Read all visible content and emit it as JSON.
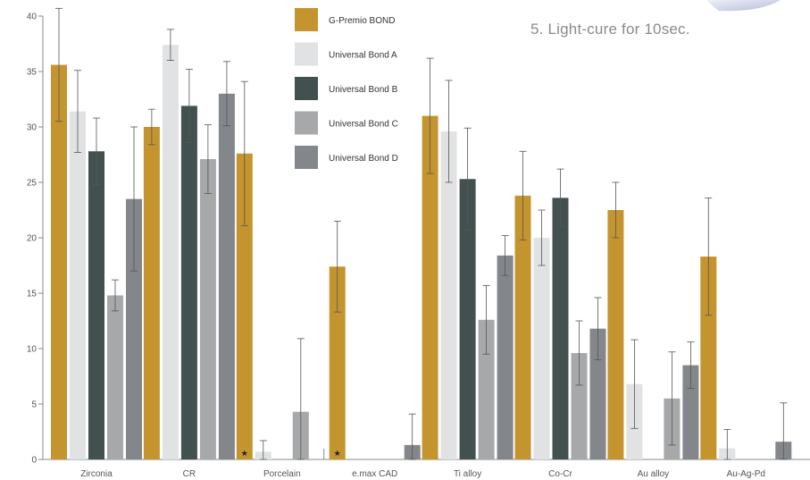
{
  "note": "5. Light-cure for 10sec.",
  "star_marker": "★",
  "chart_data": {
    "type": "bar",
    "title": "",
    "xlabel": "",
    "ylabel": "",
    "ylim": [
      0,
      40
    ],
    "yticks": [
      0,
      5,
      10,
      15,
      20,
      25,
      30,
      35,
      40
    ],
    "grid": false,
    "legend_placement": "top-center",
    "categories": [
      "Zirconia",
      "CR",
      "Porcelain",
      "e.max CAD",
      "Ti alloy",
      "Co-Cr",
      "Au alloy",
      "Au-Ag-Pd"
    ],
    "series": [
      {
        "name": "G-Premio BOND",
        "color": "#c4952f",
        "values": [
          35.6,
          30.0,
          27.6,
          17.4,
          31.0,
          23.8,
          22.5,
          18.3
        ],
        "errors": [
          5.1,
          1.6,
          6.5,
          4.1,
          5.2,
          4.0,
          2.5,
          5.3
        ]
      },
      {
        "name": "Universal Bond A",
        "color": "#e1e2e3",
        "values": [
          31.4,
          37.4,
          0.7,
          0,
          29.6,
          20.0,
          6.8,
          1.0
        ],
        "errors": [
          3.7,
          1.4,
          1.0,
          0,
          4.6,
          2.5,
          4.0,
          1.7
        ]
      },
      {
        "name": "Universal Bond B",
        "color": "#435050",
        "values": [
          27.8,
          31.9,
          0,
          0,
          25.3,
          23.6,
          0,
          0
        ],
        "errors": [
          3.0,
          3.3,
          0,
          0,
          4.6,
          2.6,
          0,
          0
        ]
      },
      {
        "name": "Universal Bond C",
        "color": "#a6a8aa",
        "values": [
          14.8,
          27.1,
          4.3,
          0,
          12.6,
          9.6,
          5.5,
          0
        ],
        "errors": [
          1.4,
          3.1,
          6.6,
          0,
          3.1,
          2.9,
          4.2,
          0
        ]
      },
      {
        "name": "Universal Bond D",
        "color": "#83878b",
        "values": [
          23.5,
          33.0,
          0,
          1.3,
          18.4,
          11.8,
          8.5,
          1.6
        ],
        "errors": [
          6.5,
          2.9,
          0,
          2.8,
          1.8,
          2.8,
          2.1,
          3.5
        ]
      }
    ],
    "zero_markers": [
      {
        "category": "Porcelain",
        "series": "G-Premio BOND"
      },
      {
        "category": "e.max CAD",
        "series": "G-Premio BOND"
      }
    ]
  }
}
